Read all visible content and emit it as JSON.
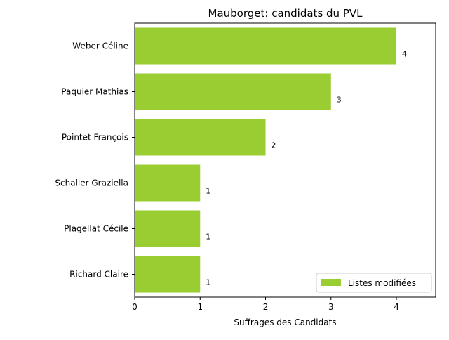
{
  "chart_data": {
    "type": "bar",
    "orientation": "horizontal",
    "title": "Mauborget: candidats du PVL",
    "xlabel": "Suffrages des Candidats",
    "ylabel": "",
    "categories": [
      "Weber Céline",
      "Paquier Mathias",
      "Pointet François",
      "Schaller Graziella",
      "Plagellat Cécile",
      "Richard Claire"
    ],
    "series": [
      {
        "name": "Listes modifiées",
        "values": [
          4,
          3,
          2,
          1,
          1,
          1
        ],
        "color": "#9acd32"
      }
    ],
    "data_labels": [
      "4",
      "3",
      "2",
      "1",
      "1",
      "1"
    ],
    "xlim": [
      0,
      4.6
    ],
    "xticks": [
      0,
      1,
      2,
      3,
      4
    ],
    "xtick_labels": [
      "0",
      "1",
      "2",
      "3",
      "4"
    ],
    "grid": false,
    "legend_position": "lower right"
  }
}
